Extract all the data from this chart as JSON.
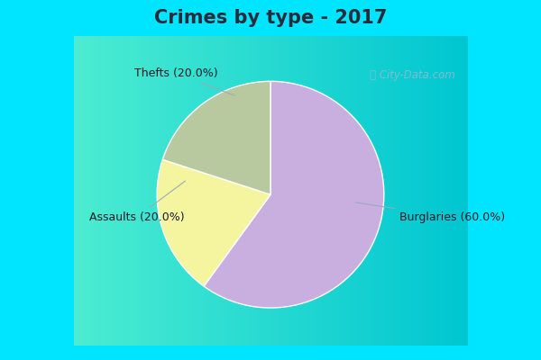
{
  "title": "Crimes by type - 2017",
  "slices": [
    {
      "label": "Burglaries",
      "pct": 60.0,
      "color": "#c9aee0"
    },
    {
      "label": "Thefts",
      "pct": 20.0,
      "color": "#f5f5a0"
    },
    {
      "label": "Assaults",
      "pct": 20.0,
      "color": "#b8c9a0"
    }
  ],
  "bg_color_top": "#00e5ff",
  "bg_color_body_tl": "#b8e8d8",
  "bg_color_body_br": "#d8f0e8",
  "title_fontsize": 15,
  "label_fontsize": 9,
  "watermark": "City-Data.com",
  "startangle": 90,
  "title_color": "#2a2a3a"
}
